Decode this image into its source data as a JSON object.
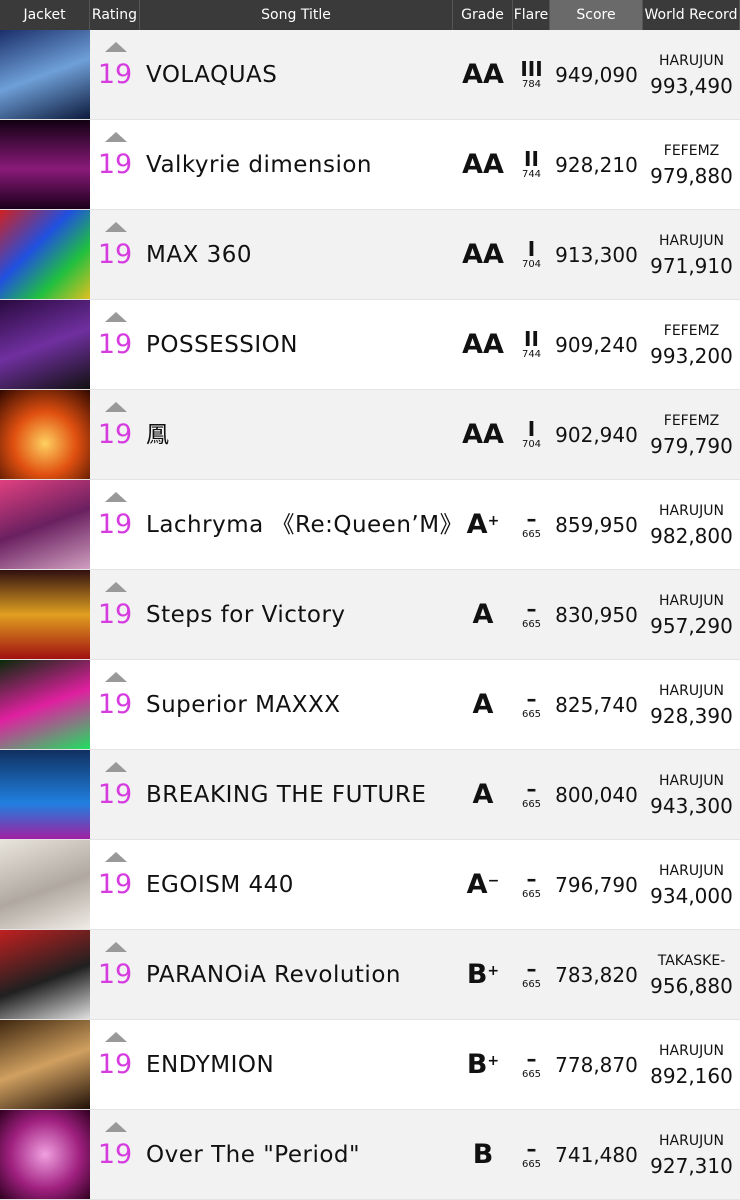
{
  "header": [
    "Jacket",
    "Rating",
    "Song Title",
    "Grade",
    "Flare",
    "Score",
    "World Record"
  ],
  "rows": [
    {
      "rating": "19",
      "title": "VOLAQUAS",
      "grade": "AA",
      "flare": "III",
      "flare_points": "784",
      "score": "949,090",
      "record_holder": "HARUJUN",
      "record_score": "993,490"
    },
    {
      "rating": "19",
      "title": "Valkyrie dimension",
      "grade": "AA",
      "flare": "II",
      "flare_points": "744",
      "score": "928,210",
      "record_holder": "FEFEMZ",
      "record_score": "979,880"
    },
    {
      "rating": "19",
      "title": "MAX 360",
      "grade": "AA",
      "flare": "I",
      "flare_points": "704",
      "score": "913,300",
      "record_holder": "HARUJUN",
      "record_score": "971,910"
    },
    {
      "rating": "19",
      "title": "POSSESSION",
      "grade": "AA",
      "flare": "II",
      "flare_points": "744",
      "score": "909,240",
      "record_holder": "FEFEMZ",
      "record_score": "993,200"
    },
    {
      "rating": "19",
      "title": "鳳",
      "grade": "AA",
      "flare": "I",
      "flare_points": "704",
      "score": "902,940",
      "record_holder": "FEFEMZ",
      "record_score": "979,790"
    },
    {
      "rating": "19",
      "title": "Lachryma 《Re:Queen’M》",
      "grade": "A",
      "grade_mod": "+",
      "flare": "–",
      "flare_points": "665",
      "score": "859,950",
      "record_holder": "HARUJUN",
      "record_score": "982,800"
    },
    {
      "rating": "19",
      "title": "Steps for Victory",
      "grade": "A",
      "flare": "–",
      "flare_points": "665",
      "score": "830,950",
      "record_holder": "HARUJUN",
      "record_score": "957,290"
    },
    {
      "rating": "19",
      "title": "Superior MAXXX",
      "grade": "A",
      "flare": "–",
      "flare_points": "665",
      "score": "825,740",
      "record_holder": "HARUJUN",
      "record_score": "928,390"
    },
    {
      "rating": "19",
      "title": "BREAKING THE FUTURE",
      "grade": "A",
      "flare": "–",
      "flare_points": "665",
      "score": "800,040",
      "record_holder": "HARUJUN",
      "record_score": "943,300"
    },
    {
      "rating": "19",
      "title": "EGOISM 440",
      "grade": "A",
      "grade_mod": "−",
      "flare": "–",
      "flare_points": "665",
      "score": "796,790",
      "record_holder": "HARUJUN",
      "record_score": "934,000"
    },
    {
      "rating": "19",
      "title": "PARANOiA Revolution",
      "grade": "B",
      "grade_mod": "+",
      "flare": "–",
      "flare_points": "665",
      "score": "783,820",
      "record_holder": "TAKASKE-",
      "record_score": "956,880"
    },
    {
      "rating": "19",
      "title": "ENDYMION",
      "grade": "B",
      "grade_mod": "+",
      "flare": "–",
      "flare_points": "665",
      "score": "778,870",
      "record_holder": "HARUJUN",
      "record_score": "892,160"
    },
    {
      "rating": "19",
      "title": "Over The \"Period\"",
      "grade": "B",
      "flare": "–",
      "flare_points": "665",
      "score": "741,480",
      "record_holder": "HARUJUN",
      "record_score": "927,310"
    }
  ]
}
